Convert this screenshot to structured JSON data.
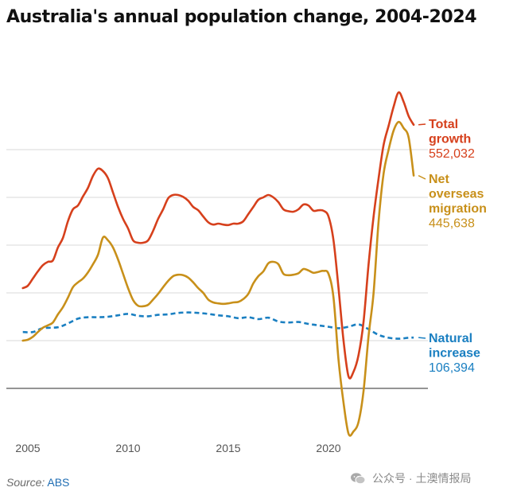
{
  "title": "Australia's annual population change, 2004-2024",
  "source": {
    "label": "Source:",
    "name": "ABS"
  },
  "watermark": "公众号 · 土澳情报局",
  "chart_data": {
    "type": "line",
    "title": "Australia's annual population change, 2004-2024",
    "xlabel": "",
    "ylabel": "",
    "xlim": [
      2004.5,
      2025.3
    ],
    "ylim": [
      -100000,
      600000
    ],
    "x_ticks": [
      "2005",
      "2010",
      "2015",
      "2020"
    ],
    "y_gridlines": [
      0,
      100000,
      200000,
      300000,
      400000,
      500000
    ],
    "grid": "horizontal",
    "legend": "direct labels at line ends",
    "series": [
      {
        "name": "Total growth",
        "color": "#d6401c",
        "style": "solid",
        "end_value_label": "552,032",
        "points": [
          [
            2004.75,
            210000
          ],
          [
            2005.0,
            215000
          ],
          [
            2005.25,
            230000
          ],
          [
            2005.5,
            245000
          ],
          [
            2005.75,
            258000
          ],
          [
            2006.0,
            265000
          ],
          [
            2006.25,
            268000
          ],
          [
            2006.5,
            295000
          ],
          [
            2006.75,
            315000
          ],
          [
            2007.0,
            350000
          ],
          [
            2007.25,
            375000
          ],
          [
            2007.5,
            383000
          ],
          [
            2007.75,
            402000
          ],
          [
            2008.0,
            420000
          ],
          [
            2008.25,
            445000
          ],
          [
            2008.5,
            460000
          ],
          [
            2008.75,
            455000
          ],
          [
            2009.0,
            440000
          ],
          [
            2009.25,
            410000
          ],
          [
            2009.5,
            380000
          ],
          [
            2009.75,
            355000
          ],
          [
            2010.0,
            335000
          ],
          [
            2010.25,
            310000
          ],
          [
            2010.5,
            305000
          ],
          [
            2010.75,
            305000
          ],
          [
            2011.0,
            310000
          ],
          [
            2011.25,
            330000
          ],
          [
            2011.5,
            355000
          ],
          [
            2011.75,
            375000
          ],
          [
            2012.0,
            398000
          ],
          [
            2012.25,
            405000
          ],
          [
            2012.5,
            405000
          ],
          [
            2012.75,
            401000
          ],
          [
            2013.0,
            393000
          ],
          [
            2013.25,
            380000
          ],
          [
            2013.5,
            373000
          ],
          [
            2013.75,
            360000
          ],
          [
            2014.0,
            348000
          ],
          [
            2014.25,
            343000
          ],
          [
            2014.5,
            345000
          ],
          [
            2014.75,
            343000
          ],
          [
            2015.0,
            342000
          ],
          [
            2015.25,
            345000
          ],
          [
            2015.5,
            345000
          ],
          [
            2015.75,
            350000
          ],
          [
            2016.0,
            365000
          ],
          [
            2016.25,
            380000
          ],
          [
            2016.5,
            395000
          ],
          [
            2016.75,
            400000
          ],
          [
            2017.0,
            405000
          ],
          [
            2017.25,
            400000
          ],
          [
            2017.5,
            390000
          ],
          [
            2017.75,
            375000
          ],
          [
            2018.0,
            371000
          ],
          [
            2018.25,
            370000
          ],
          [
            2018.5,
            375000
          ],
          [
            2018.75,
            385000
          ],
          [
            2019.0,
            383000
          ],
          [
            2019.25,
            372000
          ],
          [
            2019.5,
            373000
          ],
          [
            2019.75,
            372000
          ],
          [
            2020.0,
            360000
          ],
          [
            2020.25,
            310000
          ],
          [
            2020.5,
            210000
          ],
          [
            2020.75,
            100000
          ],
          [
            2021.0,
            25000
          ],
          [
            2021.25,
            35000
          ],
          [
            2021.5,
            70000
          ],
          [
            2021.75,
            140000
          ],
          [
            2022.0,
            260000
          ],
          [
            2022.25,
            360000
          ],
          [
            2022.5,
            440000
          ],
          [
            2022.75,
            510000
          ],
          [
            2023.0,
            550000
          ],
          [
            2023.25,
            590000
          ],
          [
            2023.5,
            620000
          ],
          [
            2023.75,
            600000
          ],
          [
            2024.0,
            570000
          ],
          [
            2024.25,
            552032
          ]
        ]
      },
      {
        "name": "Net overseas migration",
        "color": "#c8901a",
        "style": "solid",
        "end_value_label": "445,638",
        "points": [
          [
            2004.75,
            100000
          ],
          [
            2005.0,
            102000
          ],
          [
            2005.25,
            108000
          ],
          [
            2005.5,
            118000
          ],
          [
            2005.75,
            127000
          ],
          [
            2006.0,
            132000
          ],
          [
            2006.25,
            138000
          ],
          [
            2006.5,
            155000
          ],
          [
            2006.75,
            170000
          ],
          [
            2007.0,
            190000
          ],
          [
            2007.25,
            212000
          ],
          [
            2007.5,
            222000
          ],
          [
            2007.75,
            230000
          ],
          [
            2008.0,
            243000
          ],
          [
            2008.25,
            260000
          ],
          [
            2008.5,
            280000
          ],
          [
            2008.75,
            316000
          ],
          [
            2009.0,
            310000
          ],
          [
            2009.25,
            295000
          ],
          [
            2009.5,
            270000
          ],
          [
            2009.75,
            240000
          ],
          [
            2010.0,
            210000
          ],
          [
            2010.25,
            185000
          ],
          [
            2010.5,
            173000
          ],
          [
            2010.75,
            172000
          ],
          [
            2011.0,
            175000
          ],
          [
            2011.25,
            186000
          ],
          [
            2011.5,
            198000
          ],
          [
            2011.75,
            212000
          ],
          [
            2012.0,
            225000
          ],
          [
            2012.25,
            235000
          ],
          [
            2012.5,
            238000
          ],
          [
            2012.75,
            237000
          ],
          [
            2013.0,
            232000
          ],
          [
            2013.25,
            222000
          ],
          [
            2013.5,
            210000
          ],
          [
            2013.75,
            200000
          ],
          [
            2014.0,
            186000
          ],
          [
            2014.25,
            180000
          ],
          [
            2014.5,
            178000
          ],
          [
            2014.75,
            177000
          ],
          [
            2015.0,
            178000
          ],
          [
            2015.25,
            180000
          ],
          [
            2015.5,
            181000
          ],
          [
            2015.75,
            187000
          ],
          [
            2016.0,
            198000
          ],
          [
            2016.25,
            220000
          ],
          [
            2016.5,
            235000
          ],
          [
            2016.75,
            245000
          ],
          [
            2017.0,
            262000
          ],
          [
            2017.25,
            265000
          ],
          [
            2017.5,
            260000
          ],
          [
            2017.75,
            240000
          ],
          [
            2018.0,
            237000
          ],
          [
            2018.25,
            238000
          ],
          [
            2018.5,
            241000
          ],
          [
            2018.75,
            250000
          ],
          [
            2019.0,
            247000
          ],
          [
            2019.25,
            242000
          ],
          [
            2019.5,
            244000
          ],
          [
            2019.75,
            246000
          ],
          [
            2020.0,
            240000
          ],
          [
            2020.25,
            190000
          ],
          [
            2020.5,
            60000
          ],
          [
            2020.75,
            -30000
          ],
          [
            2021.0,
            -95000
          ],
          [
            2021.25,
            -90000
          ],
          [
            2021.5,
            -70000
          ],
          [
            2021.75,
            -5000
          ],
          [
            2022.0,
            110000
          ],
          [
            2022.25,
            200000
          ],
          [
            2022.5,
            350000
          ],
          [
            2022.75,
            450000
          ],
          [
            2023.0,
            500000
          ],
          [
            2023.25,
            540000
          ],
          [
            2023.5,
            558000
          ],
          [
            2023.75,
            545000
          ],
          [
            2024.0,
            525000
          ],
          [
            2024.25,
            445638
          ]
        ]
      },
      {
        "name": "Natural increase",
        "color": "#1a7fc1",
        "style": "dashed",
        "end_value_label": "106,394",
        "points": [
          [
            2004.75,
            118000
          ],
          [
            2005.25,
            118000
          ],
          [
            2005.75,
            126000
          ],
          [
            2006.5,
            128000
          ],
          [
            2007.0,
            136000
          ],
          [
            2007.5,
            146000
          ],
          [
            2008.0,
            149000
          ],
          [
            2008.5,
            149000
          ],
          [
            2009.0,
            150000
          ],
          [
            2009.5,
            153000
          ],
          [
            2010.0,
            156000
          ],
          [
            2010.5,
            152000
          ],
          [
            2011.0,
            151000
          ],
          [
            2011.5,
            154000
          ],
          [
            2012.0,
            155000
          ],
          [
            2012.5,
            158000
          ],
          [
            2013.0,
            159000
          ],
          [
            2013.5,
            158000
          ],
          [
            2014.0,
            156000
          ],
          [
            2014.5,
            153000
          ],
          [
            2015.0,
            151000
          ],
          [
            2015.5,
            147000
          ],
          [
            2016.0,
            149000
          ],
          [
            2016.5,
            145000
          ],
          [
            2017.0,
            148000
          ],
          [
            2017.5,
            140000
          ],
          [
            2018.0,
            138000
          ],
          [
            2018.5,
            139000
          ],
          [
            2019.0,
            135000
          ],
          [
            2019.5,
            132000
          ],
          [
            2020.0,
            129000
          ],
          [
            2020.5,
            126000
          ],
          [
            2021.0,
            129000
          ],
          [
            2021.5,
            134000
          ],
          [
            2022.0,
            124000
          ],
          [
            2022.5,
            112000
          ],
          [
            2023.0,
            106000
          ],
          [
            2023.5,
            104000
          ],
          [
            2024.0,
            106000
          ],
          [
            2024.25,
            106394
          ]
        ]
      }
    ]
  }
}
